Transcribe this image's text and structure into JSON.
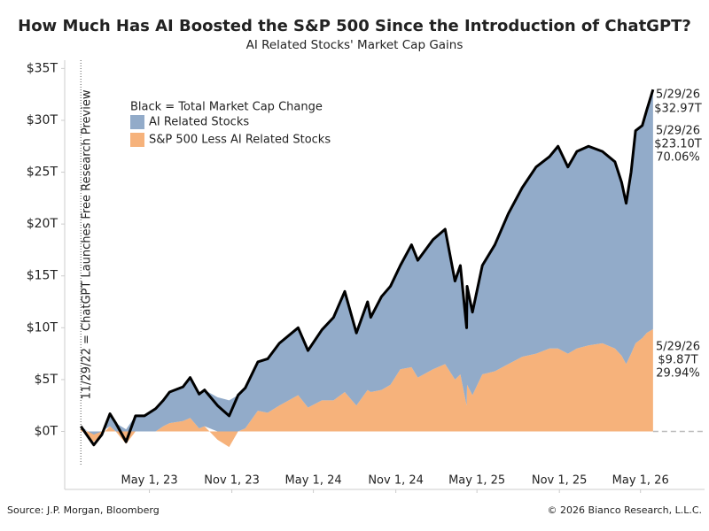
{
  "chart_data": {
    "type": "stacked-area",
    "title": "How Much Has AI Boosted the S&P 500 Since the Introduction of ChatGPT?",
    "subtitle": "AI Related Stocks' Market Cap Gains",
    "legend_note": "Black = Total Market Cap Change",
    "source": "Source: J.P. Morgan, Bloomberg",
    "copyright": "© 2026 Bianco Research, L.L.C.",
    "event": {
      "date": "2022-11-29",
      "label": "11/29/22 = ChatGPT Launches Free Research Preview"
    },
    "x": [
      "2022-11-29",
      "2022-12-15",
      "2022-12-28",
      "2023-01-15",
      "2023-02-02",
      "2023-02-15",
      "2023-03-10",
      "2023-03-31",
      "2023-04-20",
      "2023-05-15",
      "2023-06-01",
      "2023-06-15",
      "2023-07-15",
      "2023-07-31",
      "2023-08-20",
      "2023-09-01",
      "2023-09-30",
      "2023-10-26",
      "2023-11-15",
      "2023-12-01",
      "2023-12-29",
      "2024-01-20",
      "2024-02-15",
      "2024-03-28",
      "2024-04-19",
      "2024-05-20",
      "2024-06-15",
      "2024-07-10",
      "2024-08-05",
      "2024-08-30",
      "2024-09-06",
      "2024-09-30",
      "2024-10-20",
      "2024-11-11",
      "2024-12-06",
      "2024-12-20",
      "2025-01-23",
      "2025-02-19",
      "2025-03-13",
      "2025-03-25",
      "2025-04-08",
      "2025-04-09",
      "2025-04-21",
      "2025-05-13",
      "2025-06-10",
      "2025-07-10",
      "2025-08-10",
      "2025-09-10",
      "2025-10-10",
      "2025-10-29",
      "2025-11-20",
      "2025-12-10",
      "2026-01-05",
      "2026-02-05",
      "2026-03-05",
      "2026-03-20",
      "2026-03-30",
      "2026-04-10",
      "2026-04-20",
      "2026-05-05",
      "2026-05-15",
      "2026-05-29"
    ],
    "series": [
      {
        "name": "AI Related Stocks",
        "color": "#92abc9",
        "label_color": "#6f90b6",
        "values": [
          0.2,
          0,
          -0.3,
          0,
          1.2,
          0.8,
          0.2,
          1.5,
          1.5,
          2.2,
          2.5,
          3.0,
          3.3,
          3.9,
          3.3,
          3.5,
          3.3,
          3.0,
          3.5,
          3.9,
          4.7,
          5.2,
          6.0,
          6.5,
          5.5,
          6.8,
          8.0,
          9.7,
          7.0,
          8.5,
          7.2,
          9.0,
          9.5,
          10.0,
          11.8,
          11.3,
          12.5,
          13.0,
          9.5,
          10.5,
          7.5,
          9.5,
          8.0,
          10.5,
          12.2,
          14.5,
          16.3,
          18.0,
          18.5,
          19.5,
          18.0,
          19.0,
          19.2,
          18.5,
          18.0,
          16.7,
          15.5,
          17.5,
          20.5,
          20.5,
          21.5,
          23.1
        ],
        "end_date": "5/29/26",
        "end_label": "$23.10T",
        "share": {
          "value": 70.06,
          "label": "70.06%"
        }
      },
      {
        "name": "S&P 500 Less AI Related Stocks",
        "color": "#f6b27b",
        "label_color": "#ea9450",
        "values": [
          0.3,
          -0.5,
          -1.0,
          -0.3,
          0.5,
          0,
          -1.2,
          0,
          0,
          0,
          0.5,
          0.8,
          1.0,
          1.3,
          0.3,
          0.5,
          -0.8,
          -1.5,
          0,
          0.3,
          2.0,
          1.8,
          2.5,
          3.5,
          2.3,
          3.0,
          3.0,
          3.8,
          2.5,
          4.0,
          3.8,
          4.0,
          4.5,
          6.0,
          6.2,
          5.2,
          6.0,
          6.5,
          5.0,
          5.5,
          2.5,
          4.5,
          3.5,
          5.5,
          5.8,
          6.5,
          7.2,
          7.5,
          8.0,
          8.0,
          7.5,
          8.0,
          8.3,
          8.5,
          8.0,
          7.3,
          6.5,
          7.5,
          8.5,
          9.0,
          9.5,
          9.87
        ],
        "end_date": "5/29/26",
        "end_label": "$9.87T",
        "share": {
          "value": 29.94,
          "label": "29.94%"
        }
      }
    ],
    "total": {
      "color": "#000000",
      "label_color": "#333333",
      "values": [
        0.5,
        -0.5,
        -1.3,
        -0.3,
        1.7,
        0.8,
        -1.0,
        1.5,
        1.5,
        2.2,
        3.0,
        3.8,
        4.3,
        5.2,
        3.6,
        4.0,
        2.5,
        1.5,
        3.5,
        4.2,
        6.7,
        7.0,
        8.5,
        10.0,
        7.8,
        9.8,
        11.0,
        13.5,
        9.5,
        12.5,
        11.0,
        13.0,
        14.0,
        16.0,
        18.0,
        16.5,
        18.5,
        19.5,
        14.5,
        16.0,
        10.0,
        14.0,
        11.5,
        16.0,
        18.0,
        21.0,
        23.5,
        25.5,
        26.5,
        27.5,
        25.5,
        27.0,
        27.5,
        27.0,
        26.0,
        24.0,
        22.0,
        25.0,
        29.0,
        29.5,
        31.0,
        32.97
      ],
      "end_date": "5/29/26",
      "end_label": "$32.97T"
    },
    "xlim": [
      "2022-10-24",
      "2026-09-21"
    ],
    "xticks": [
      {
        "value": "2023-05-01",
        "label": "May 1, 23"
      },
      {
        "value": "2023-11-01",
        "label": "Nov 1, 23"
      },
      {
        "value": "2024-05-01",
        "label": "May 1, 24"
      },
      {
        "value": "2024-11-01",
        "label": "Nov 1, 24"
      },
      {
        "value": "2025-05-01",
        "label": "May 1, 25"
      },
      {
        "value": "2025-11-01",
        "label": "Nov 1, 25"
      },
      {
        "value": "2026-05-01",
        "label": "May 1, 26"
      }
    ],
    "ylim": [
      -3.2,
      35.8
    ],
    "yticks": [
      {
        "value": 0,
        "label": "$0T"
      },
      {
        "value": 5,
        "label": "$5T"
      },
      {
        "value": 10,
        "label": "$10T"
      },
      {
        "value": 15,
        "label": "$15T"
      },
      {
        "value": 20,
        "label": "$20T"
      },
      {
        "value": 25,
        "label": "$25T"
      },
      {
        "value": 30,
        "label": "$30T"
      },
      {
        "value": 35,
        "label": "$35T"
      }
    ]
  }
}
